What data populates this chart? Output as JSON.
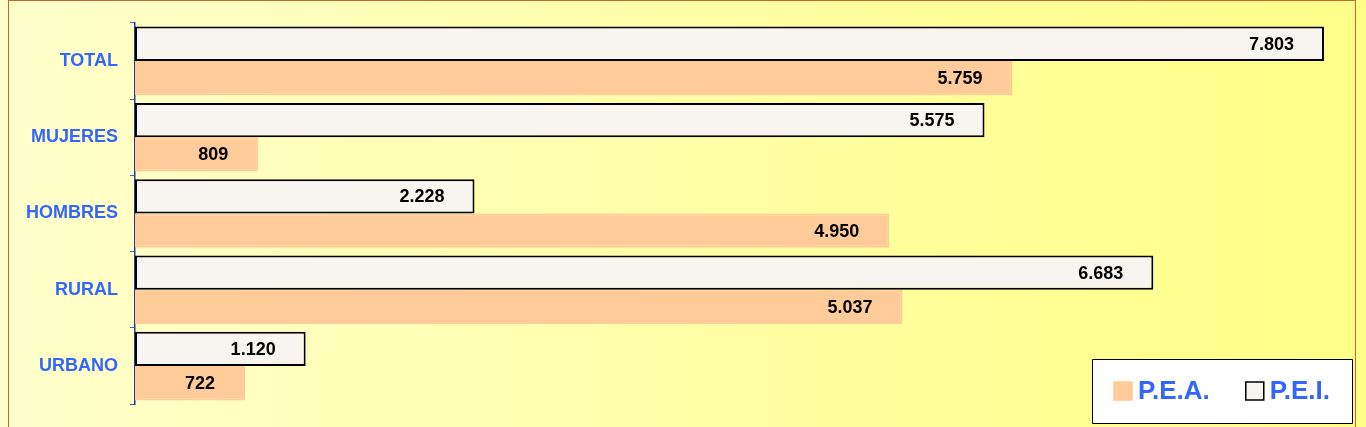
{
  "chart_data": {
    "type": "bar",
    "orientation": "horizontal",
    "categories": [
      "TOTAL",
      "MUJERES",
      "HOMBRES",
      "RURAL",
      "URBANO"
    ],
    "series": [
      {
        "name": "P.E.A.",
        "color": "#ffcc99",
        "values": [
          5759,
          809,
          4950,
          5037,
          722
        ],
        "value_labels": [
          "5.759",
          "809",
          "4.950",
          "5.037",
          "722"
        ]
      },
      {
        "name": "P.E.I.",
        "color": "#f8f4f0",
        "values": [
          7803,
          5575,
          2228,
          6683,
          1120
        ],
        "value_labels": [
          "7.803",
          "5.575",
          "2.228",
          "6.683",
          "1.120"
        ]
      }
    ],
    "legend": "bottom right"
  }
}
